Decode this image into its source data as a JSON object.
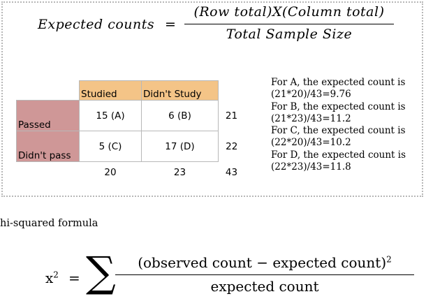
{
  "expected_formula": {
    "lhs": "Expected counts",
    "eq": "=",
    "numerator": "(Row total)X(Column total)",
    "denominator": "Total Sample Size"
  },
  "table": {
    "col_headers": [
      "Studied",
      "Didn't Study"
    ],
    "rows": [
      {
        "label": "Passed",
        "cells": [
          "15 (A)",
          "6 (B)"
        ],
        "total": "21"
      },
      {
        "label": "Didn't pass",
        "cells": [
          "5 (C)",
          "17 (D)"
        ],
        "total": "22"
      }
    ],
    "col_totals": [
      "20",
      "23"
    ],
    "grand_total": "43",
    "colors": {
      "header_bg": "#f4c487",
      "row_header_bg": "#cf9797"
    }
  },
  "notes": [
    "For A, the expected count is (21*20)/43=9.76",
    "For B, the expected count is (21*23)/43=11.2",
    "For C, the expected count is (22*20)/43=10.2",
    "For D, the expected count is (22*23)/43=11.8"
  ],
  "caption": "hi-squared formula",
  "chi_formula": {
    "lhs": "x",
    "lhs_exp": "2",
    "eq": "=",
    "sigma": "∑",
    "numerator": "(observed count − expected count)",
    "numerator_exp": "2",
    "denominator": "expected count"
  }
}
